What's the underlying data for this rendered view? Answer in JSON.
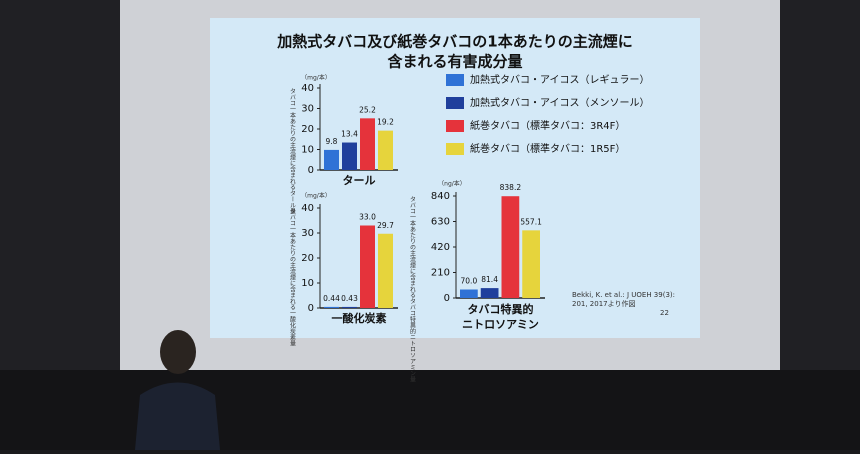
{
  "slide_title": [
    "加熱式タバコ及び紙巻タバコの1本あたりの主流煙に",
    "含まれる有害成分量"
  ],
  "legend": [
    {
      "name": "加熱式タバコ・アイコス（レギュラー）",
      "color": "#2f72d6"
    },
    {
      "name": "加熱式タバコ・アイコス（メンソール）",
      "color": "#1f3f9c"
    },
    {
      "name": "紙巻タバコ（標準タバコ：3R4F）",
      "color": "#e5333b"
    },
    {
      "name": "紙巻タバコ（標準タバコ：1R5F）",
      "color": "#e6d43c"
    }
  ],
  "chart_data": [
    {
      "type": "bar",
      "title": "タール",
      "unit": "（mg/本）",
      "y_label": "タバコ一本あたりの主流煙に含まれるタール量",
      "values": [
        9.8,
        13.4,
        25.2,
        19.2
      ],
      "ylim": [
        0,
        40
      ],
      "yticks": [
        0,
        10,
        20,
        30,
        40
      ]
    },
    {
      "type": "bar",
      "title": "一酸化炭素",
      "unit": "（mg/本）",
      "y_label": "タバコ一本あたりの主流煙に含まれる一酸化炭素量",
      "values": [
        0.44,
        0.43,
        33.0,
        29.7
      ],
      "value_labels": [
        "0.44",
        "0.43",
        "33.0",
        "29.7"
      ],
      "ylim": [
        0,
        40
      ],
      "yticks": [
        0,
        10,
        20,
        30,
        40
      ]
    },
    {
      "type": "bar",
      "title": [
        "タバコ特異的",
        "ニトロソアミン"
      ],
      "unit": "（ng/本）",
      "y_label": "タバコ一本あたりの主流煙に含まれるタバコ特異的ニトロソアミン量",
      "values": [
        70.0,
        81.4,
        838.2,
        557.1
      ],
      "value_labels": [
        "70.0",
        "81.4",
        "838.2",
        "557.1"
      ],
      "ylim": [
        0,
        840
      ],
      "yticks": [
        0,
        210,
        420,
        630,
        840
      ]
    }
  ],
  "citation": [
    "Bekki, K. et al.: J UOEH 39(3):",
    "201, 2017より作図"
  ],
  "page_number": "22"
}
